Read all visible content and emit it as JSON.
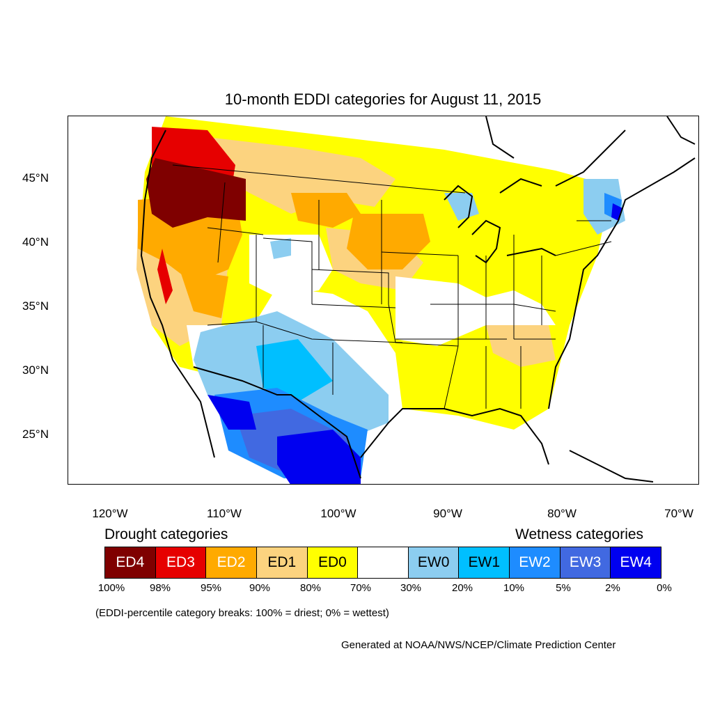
{
  "title": "10-month EDDI categories for August 11, 2015",
  "lat_ticks": [
    "45°N",
    "40°N",
    "35°N",
    "30°N",
    "25°N"
  ],
  "lon_ticks": [
    "120°W",
    "110°W",
    "100°W",
    "90°W",
    "80°W",
    "70°W"
  ],
  "drought_heading": "Drought categories",
  "wetness_heading": "Wetness categories",
  "categories": [
    {
      "label": "ED4",
      "color": "#7f0000",
      "text_color": "#ffffff"
    },
    {
      "label": "ED3",
      "color": "#e60000",
      "text_color": "#ffffff"
    },
    {
      "label": "ED2",
      "color": "#ffaa00",
      "text_color": "#ffffff"
    },
    {
      "label": "ED1",
      "color": "#fcd37f",
      "text_color": "#000000"
    },
    {
      "label": "ED0",
      "color": "#ffff00",
      "text_color": "#000000"
    },
    {
      "label": "",
      "color": "#ffffff",
      "text_color": "#000000"
    },
    {
      "label": "EW0",
      "color": "#8ccdf0",
      "text_color": "#000000"
    },
    {
      "label": "EW1",
      "color": "#00bfff",
      "text_color": "#000000"
    },
    {
      "label": "EW2",
      "color": "#1e8cff",
      "text_color": "#ffffff"
    },
    {
      "label": "EW3",
      "color": "#4169e1",
      "text_color": "#ffffff"
    },
    {
      "label": "EW4",
      "color": "#0000f0",
      "text_color": "#ffffff"
    }
  ],
  "percentile_breaks": [
    "100%",
    "98%",
    "95%",
    "90%",
    "80%",
    "70%",
    "30%",
    "20%",
    "10%",
    "5%",
    "2%",
    "0%"
  ],
  "note": "(EDDI-percentile category breaks: 100% = driest; 0% = wettest)",
  "credit": "Generated at NOAA/NWS/NCEP/Climate Prediction Center"
}
